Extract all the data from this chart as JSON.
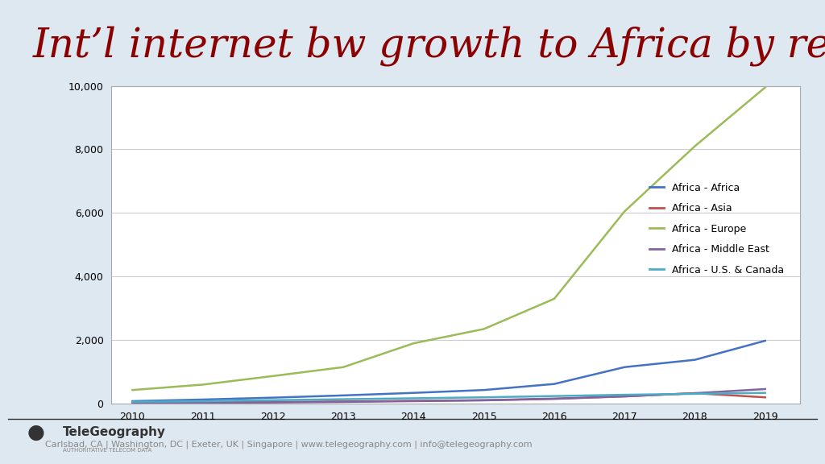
{
  "title": "Int’l internet bw growth to Africa by region",
  "title_color": "#8B0000",
  "background_color": "#dde8f0",
  "chart_bg": "#ffffff",
  "years": [
    2010,
    2011,
    2012,
    2013,
    2014,
    2015,
    2016,
    2017,
    2018,
    2019
  ],
  "series": {
    "Africa - Africa": {
      "color": "#4472C4",
      "values": [
        80,
        130,
        190,
        260,
        340,
        430,
        620,
        1150,
        1380,
        1980
      ]
    },
    "Africa - Asia": {
      "color": "#C0504D",
      "values": [
        30,
        40,
        55,
        70,
        90,
        110,
        160,
        230,
        330,
        200
      ]
    },
    "Africa - Europe": {
      "color": "#9BBB59",
      "values": [
        430,
        600,
        870,
        1150,
        1900,
        2350,
        3300,
        6050,
        8100,
        9950
      ]
    },
    "Africa - Middle East": {
      "color": "#8064A2",
      "values": [
        20,
        28,
        38,
        55,
        80,
        105,
        150,
        230,
        330,
        460
      ]
    },
    "Africa - U.S. & Canada": {
      "color": "#4BACC6",
      "values": [
        60,
        80,
        110,
        140,
        170,
        200,
        240,
        280,
        310,
        340
      ]
    }
  },
  "ylim": [
    0,
    10000
  ],
  "yticks": [
    0,
    2000,
    4000,
    6000,
    8000,
    10000
  ],
  "footer_text": "Carlsbad, CA | Washington, DC | Exeter, UK | Singapore | www.telegeography.com | info@telegeography.com",
  "footer_logo_text": "TeleGeography",
  "footer_sub_text": "AUTHORITATIVE TELECOM DATA",
  "footer_color": "#888888"
}
